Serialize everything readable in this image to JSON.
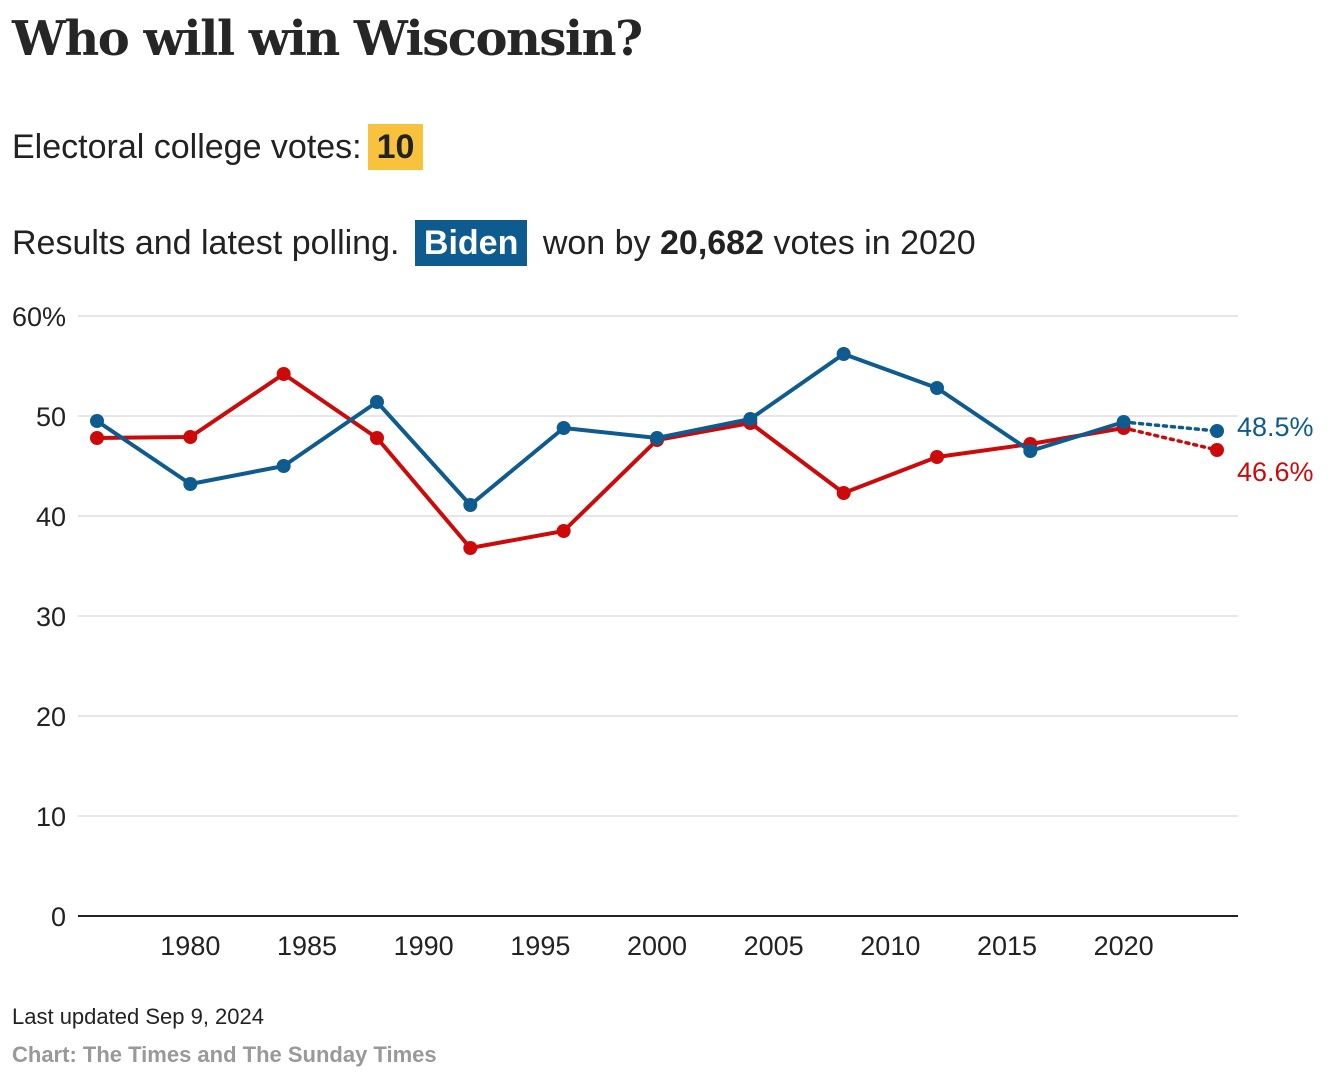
{
  "header": {
    "title": "Who will win Wisconsin?",
    "ecv_label": "Electoral college votes:",
    "ecv_value": "10",
    "subtitle_prefix": "Results and latest polling.",
    "winner": "Biden",
    "won_by_text": "won by",
    "margin": "20,682",
    "votes_in": "votes in 2020"
  },
  "colors": {
    "dem": "#0d5b8f",
    "rep": "#cc0a0a",
    "ecv_highlight": "#f9c23c",
    "grid": "#dddddd",
    "axis": "#222222"
  },
  "chart_data": {
    "type": "line",
    "x": [
      1976,
      1980,
      1984,
      1988,
      1992,
      1996,
      2000,
      2004,
      2008,
      2012,
      2016,
      2020
    ],
    "series": [
      {
        "values": [
          49.5,
          43.2,
          45.0,
          51.4,
          41.1,
          48.8,
          47.8,
          49.7,
          56.2,
          52.8,
          46.5,
          49.4
        ],
        "projection": {
          "x": 2024,
          "value": 48.5,
          "label": "48.5%"
        }
      },
      {
        "values": [
          47.8,
          47.9,
          54.2,
          47.8,
          36.8,
          38.5,
          47.6,
          49.3,
          42.3,
          45.9,
          47.2,
          48.8
        ],
        "projection": {
          "x": 2024,
          "value": 46.6,
          "label": "46.6%"
        }
      }
    ],
    "ylim": [
      0,
      60
    ],
    "y_ticks": [
      0,
      10,
      20,
      30,
      40,
      50,
      60
    ],
    "y_tick_labels": [
      "0",
      "10",
      "20",
      "30",
      "40",
      "50",
      "60%"
    ],
    "x_ticks": [
      1980,
      1985,
      1990,
      1995,
      2000,
      2005,
      2010,
      2015,
      2020
    ],
    "x_tick_labels": [
      "1980",
      "1985",
      "1990",
      "1995",
      "2000",
      "2005",
      "2010",
      "2015",
      "2020"
    ],
    "grid": true
  },
  "footer": {
    "updated": "Last updated Sep 9, 2024",
    "source": "Chart: The Times and The Sunday Times"
  }
}
